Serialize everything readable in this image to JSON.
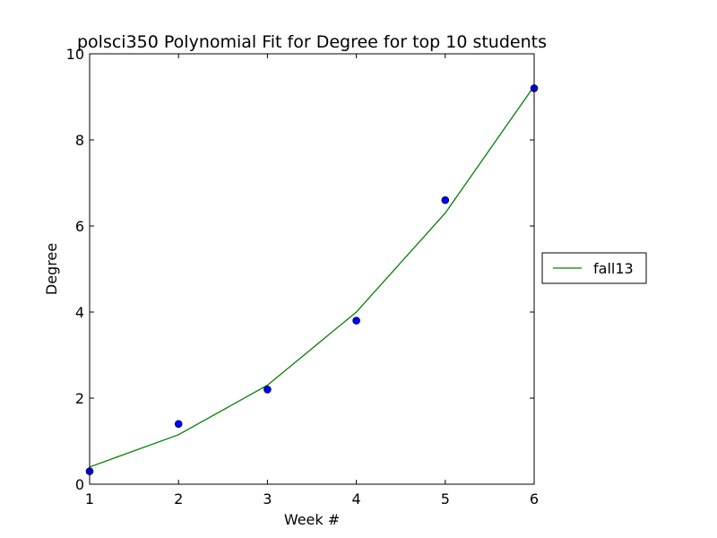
{
  "chart_data": {
    "type": "line",
    "title": "polsci350 Polynomial Fit for Degree for top 10 students",
    "xlabel": "Week #",
    "ylabel": "Degree",
    "xlim": [
      1,
      6
    ],
    "ylim": [
      0,
      10
    ],
    "xticks": [
      "1",
      "2",
      "3",
      "4",
      "5",
      "6"
    ],
    "yticks": [
      "0",
      "2",
      "4",
      "6",
      "8",
      "10"
    ],
    "grid": false,
    "legend_position": "right, outside plot",
    "scatter_points": {
      "x": [
        1,
        2,
        3,
        4,
        5,
        6
      ],
      "y": [
        0.3,
        1.4,
        2.2,
        3.8,
        6.6,
        9.2
      ],
      "color": "#0000ff"
    },
    "series": [
      {
        "name": "fall13",
        "x": [
          1,
          2,
          3,
          4,
          5,
          6
        ],
        "values": [
          0.4,
          1.15,
          2.3,
          4.0,
          6.3,
          9.25
        ],
        "color": "#008000"
      }
    ]
  }
}
